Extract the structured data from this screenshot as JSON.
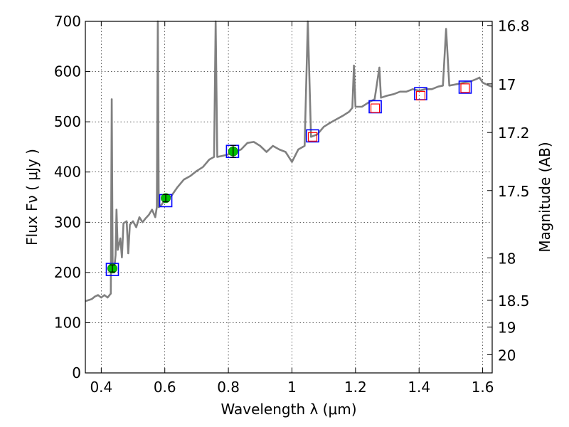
{
  "chart_data": {
    "type": "line",
    "xlabel": "Wavelength  λ (μm)",
    "ylabel": "Flux  Fν  ( μJy )",
    "y2label": "Magnitude (AB)",
    "xlim": [
      0.35,
      1.63
    ],
    "ylim": [
      0,
      700
    ],
    "grid": true,
    "x_ticks": [
      0.4,
      0.6,
      0.8,
      1.0,
      1.2,
      1.4,
      1.6
    ],
    "x_tick_labels": [
      "0.4",
      "0.6",
      "0.8",
      "1",
      "1.2",
      "1.4",
      "1.6"
    ],
    "y_ticks": [
      0,
      100,
      200,
      300,
      400,
      500,
      600,
      700
    ],
    "y_tick_labels": [
      "0",
      "100",
      "200",
      "300",
      "400",
      "500",
      "600",
      "700"
    ],
    "mag_ticks": [
      16.8,
      17,
      17.2,
      17.5,
      18,
      18.5,
      19,
      20
    ],
    "mag_tick_labels": [
      "16.8",
      "17",
      "17.2",
      "17.5",
      "18",
      "18.5",
      "19",
      "20"
    ],
    "colors": {
      "spectrum": "#808080",
      "model_box": "#0000ff",
      "observed_point": "#00c000",
      "nir_marker": "#ff0000"
    },
    "series": [
      {
        "kind": "spectrum",
        "points": [
          [
            0.35,
            143
          ],
          [
            0.37,
            147
          ],
          [
            0.38,
            152
          ],
          [
            0.39,
            155
          ],
          [
            0.4,
            150
          ],
          [
            0.41,
            155
          ],
          [
            0.42,
            150
          ],
          [
            0.43,
            158
          ],
          [
            0.433,
            545
          ],
          [
            0.436,
            210
          ],
          [
            0.44,
            200
          ],
          [
            0.445,
            235
          ],
          [
            0.448,
            325
          ],
          [
            0.452,
            245
          ],
          [
            0.46,
            268
          ],
          [
            0.465,
            230
          ],
          [
            0.47,
            298
          ],
          [
            0.48,
            302
          ],
          [
            0.485,
            238
          ],
          [
            0.49,
            295
          ],
          [
            0.5,
            302
          ],
          [
            0.51,
            290
          ],
          [
            0.52,
            310
          ],
          [
            0.53,
            300
          ],
          [
            0.54,
            308
          ],
          [
            0.55,
            315
          ],
          [
            0.56,
            325
          ],
          [
            0.57,
            310
          ],
          [
            0.575,
            330
          ],
          [
            0.578,
            700
          ],
          [
            0.581,
            330
          ],
          [
            0.59,
            335
          ],
          [
            0.6,
            345
          ],
          [
            0.62,
            352
          ],
          [
            0.64,
            370
          ],
          [
            0.66,
            385
          ],
          [
            0.68,
            392
          ],
          [
            0.7,
            402
          ],
          [
            0.72,
            410
          ],
          [
            0.74,
            425
          ],
          [
            0.755,
            430
          ],
          [
            0.76,
            700
          ],
          [
            0.765,
            430
          ],
          [
            0.78,
            432
          ],
          [
            0.8,
            435
          ],
          [
            0.82,
            440
          ],
          [
            0.84,
            445
          ],
          [
            0.86,
            458
          ],
          [
            0.88,
            460
          ],
          [
            0.9,
            452
          ],
          [
            0.92,
            440
          ],
          [
            0.94,
            452
          ],
          [
            0.96,
            445
          ],
          [
            0.98,
            440
          ],
          [
            1.0,
            420
          ],
          [
            1.02,
            445
          ],
          [
            1.04,
            452
          ],
          [
            1.05,
            700
          ],
          [
            1.06,
            470
          ],
          [
            1.08,
            475
          ],
          [
            1.1,
            490
          ],
          [
            1.12,
            498
          ],
          [
            1.14,
            505
          ],
          [
            1.16,
            512
          ],
          [
            1.18,
            520
          ],
          [
            1.19,
            528
          ],
          [
            1.195,
            612
          ],
          [
            1.2,
            530
          ],
          [
            1.22,
            530
          ],
          [
            1.24,
            538
          ],
          [
            1.26,
            545
          ],
          [
            1.275,
            608
          ],
          [
            1.28,
            548
          ],
          [
            1.3,
            552
          ],
          [
            1.32,
            555
          ],
          [
            1.34,
            560
          ],
          [
            1.36,
            560
          ],
          [
            1.38,
            565
          ],
          [
            1.4,
            562
          ],
          [
            1.42,
            565
          ],
          [
            1.44,
            565
          ],
          [
            1.46,
            570
          ],
          [
            1.475,
            572
          ],
          [
            1.485,
            685
          ],
          [
            1.495,
            572
          ],
          [
            1.52,
            575
          ],
          [
            1.54,
            578
          ],
          [
            1.56,
            580
          ],
          [
            1.58,
            585
          ],
          [
            1.59,
            588
          ],
          [
            1.6,
            578
          ],
          [
            1.62,
            572
          ],
          [
            1.63,
            570
          ]
        ]
      },
      {
        "kind": "model_box",
        "points": [
          [
            0.435,
            206
          ],
          [
            0.603,
            343
          ],
          [
            0.813,
            441
          ],
          [
            1.065,
            472
          ],
          [
            1.262,
            530
          ],
          [
            1.405,
            556
          ],
          [
            1.545,
            569
          ]
        ]
      },
      {
        "kind": "observed_point",
        "points": [
          [
            0.435,
            208,
            7
          ],
          [
            0.603,
            348,
            7
          ],
          [
            0.815,
            441,
            12
          ]
        ]
      },
      {
        "kind": "nir_marker",
        "points": [
          [
            1.065,
            470
          ],
          [
            1.262,
            527
          ],
          [
            1.405,
            552
          ],
          [
            1.545,
            567
          ]
        ]
      }
    ]
  }
}
